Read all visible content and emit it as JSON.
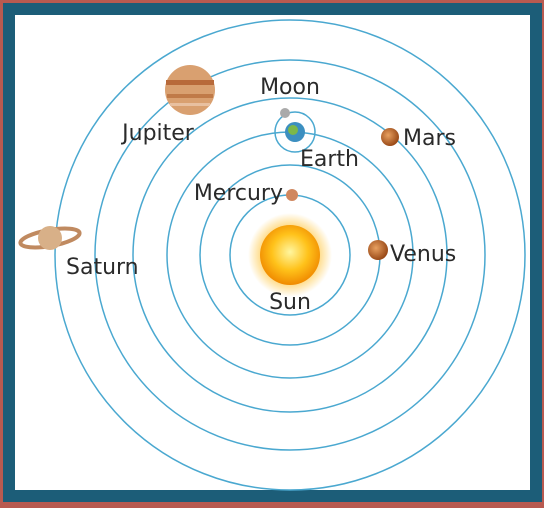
{
  "nodes": [
    {
      "label": "Moon"
    },
    {
      "label": "Jupiter"
    },
    {
      "label": "Mars"
    },
    {
      "label": "Earth"
    },
    {
      "label": "Mercury"
    },
    {
      "label": "Saturn"
    },
    {
      "label": "Venus"
    },
    {
      "label": "Sun"
    }
  ]
}
